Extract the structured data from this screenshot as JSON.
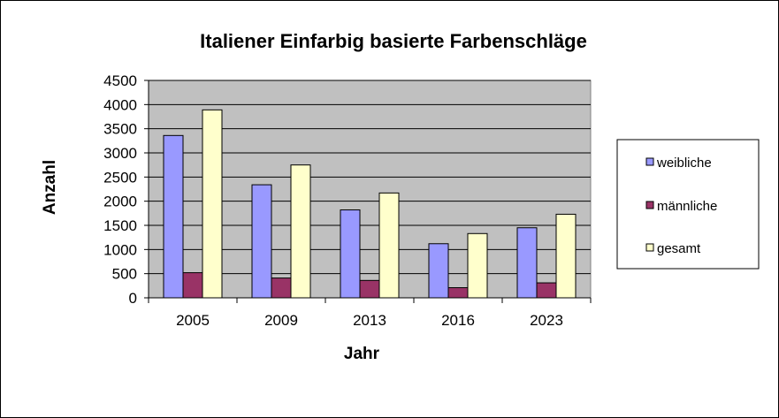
{
  "chart_data": {
    "type": "bar",
    "title": "Italiener Einfarbig basierte Farbenschläge",
    "xlabel": "Jahr",
    "ylabel": "Anzahl",
    "categories": [
      "2005",
      "2009",
      "2013",
      "2016",
      "2023"
    ],
    "series": [
      {
        "name": "weibliche",
        "values": [
          3360,
          2340,
          1820,
          1120,
          1450
        ],
        "color": "#9999ff"
      },
      {
        "name": "männliche",
        "values": [
          520,
          410,
          360,
          210,
          310
        ],
        "color": "#993366"
      },
      {
        "name": "gesamt",
        "values": [
          3890,
          2750,
          2170,
          1330,
          1730
        ],
        "color": "#ffffcc"
      }
    ],
    "ylim": [
      0,
      4500
    ],
    "yticks": [
      "0",
      "500",
      "1000",
      "1500",
      "2000",
      "2500",
      "3000",
      "3500",
      "4000",
      "4500"
    ],
    "grid": true,
    "plot_background": "#c0c0c0",
    "legend_position": "right"
  }
}
